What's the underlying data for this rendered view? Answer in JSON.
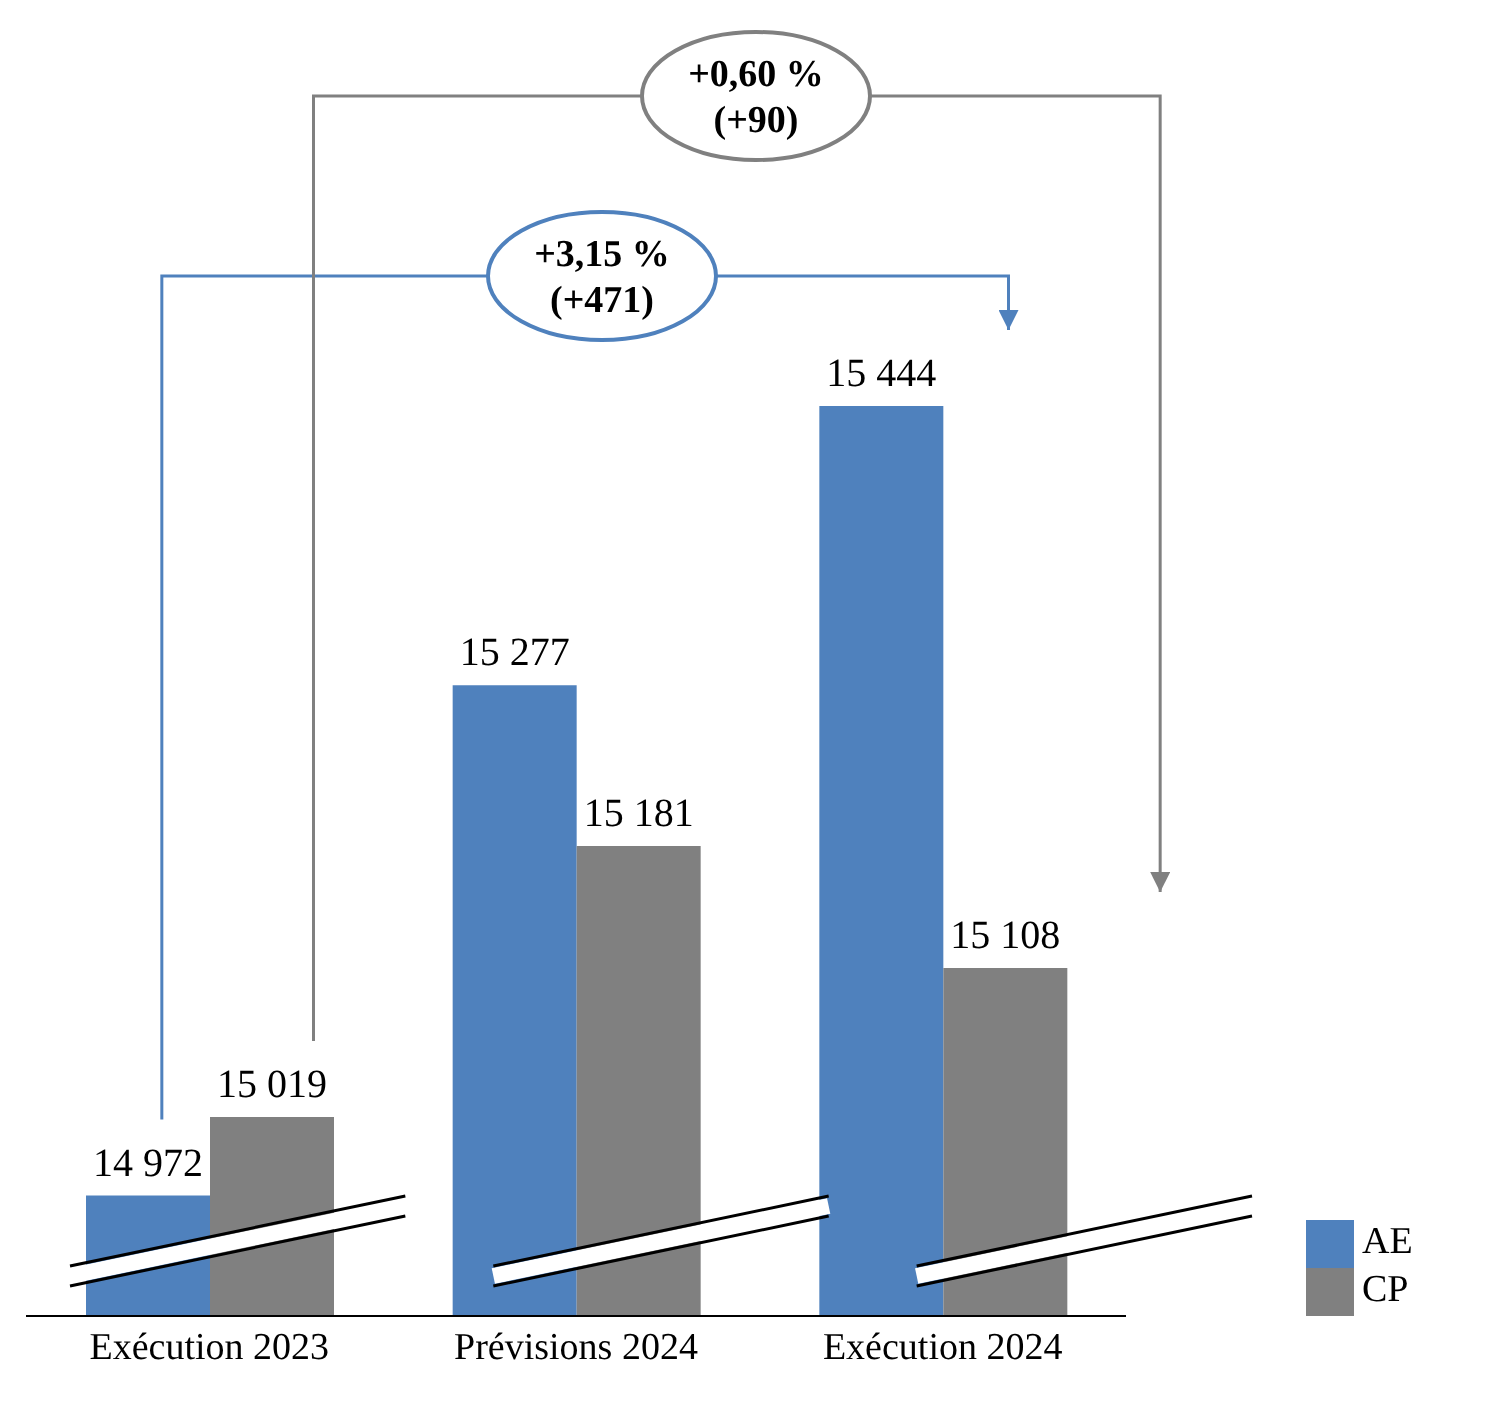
{
  "chart_data": {
    "type": "bar",
    "categories": [
      "Exécution 2023",
      "Prévisions 2024",
      "Exécution 2024"
    ],
    "series": [
      {
        "name": "AE",
        "color": "#4f81bd",
        "values": [
          14972,
          15277,
          15444
        ]
      },
      {
        "name": "CP",
        "color": "#808080",
        "values": [
          15019,
          15181,
          15108
        ]
      }
    ],
    "ylim": [
      14900,
      15444
    ],
    "data_labels": true,
    "legend": "bottom right",
    "annotations": [
      "+3,15 %\n(+471)",
      "+0,60 %\n(+90)"
    ]
  }
}
